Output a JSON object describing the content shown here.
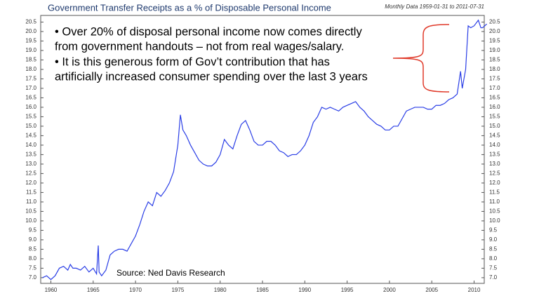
{
  "chart_data": {
    "type": "line",
    "title": "Government Transfer Receipts as a % of Disposable Personal Income",
    "subtitle": "Monthly Data 1959-01-31 to 2011-07-31",
    "annotations": [
      "• Over 20% of disposal personal income now comes directly",
      "from government handouts – not from real wages/salary.",
      "• It is this generous form of Gov’t contribution that has",
      "artificially increased consumer spending over the last 3 years"
    ],
    "source": "Source: Ned Davis Research",
    "color": "#2a3ee6",
    "x": [
      1959,
      1959.5,
      1960,
      1960.5,
      1961,
      1961.5,
      1962,
      1962.3,
      1962.6,
      1963,
      1963.5,
      1964,
      1964.5,
      1965,
      1965.4,
      1965.6,
      1965.7,
      1966,
      1966.5,
      1967,
      1967.5,
      1968,
      1968.5,
      1969,
      1969.5,
      1970,
      1970.5,
      1971,
      1971.5,
      1972,
      1972.5,
      1973,
      1973.5,
      1974,
      1974.5,
      1975,
      1975.3,
      1975.6,
      1976,
      1976.5,
      1977,
      1977.5,
      1978,
      1978.5,
      1979,
      1979.5,
      1980,
      1980.5,
      1981,
      1981.5,
      1982,
      1982.5,
      1983,
      1983.5,
      1984,
      1984.5,
      1985,
      1985.5,
      1986,
      1986.5,
      1987,
      1987.5,
      1988,
      1988.5,
      1989,
      1989.5,
      1990,
      1990.5,
      1991,
      1991.5,
      1992,
      1992.5,
      1993,
      1993.5,
      1994,
      1994.5,
      1995,
      1995.5,
      1996,
      1996.5,
      1997,
      1997.5,
      1998,
      1998.5,
      1999,
      1999.5,
      2000,
      2000.5,
      2001,
      2001.5,
      2002,
      2002.5,
      2003,
      2003.5,
      2004,
      2004.5,
      2005,
      2005.5,
      2006,
      2006.5,
      2007,
      2007.5,
      2008,
      2008.4,
      2008.6,
      2009,
      2009.3,
      2009.6,
      2010,
      2010.5,
      2010.8,
      2011,
      2011.5
    ],
    "values": [
      7.0,
      7.1,
      6.9,
      7.1,
      7.5,
      7.6,
      7.4,
      7.7,
      7.5,
      7.5,
      7.4,
      7.6,
      7.3,
      7.5,
      7.2,
      8.7,
      7.3,
      7.1,
      7.4,
      8.2,
      8.4,
      8.5,
      8.5,
      8.4,
      8.8,
      9.2,
      9.8,
      10.5,
      11.0,
      10.8,
      11.5,
      11.3,
      11.6,
      12.0,
      12.6,
      14.0,
      15.6,
      14.8,
      14.5,
      14.0,
      13.6,
      13.2,
      13.0,
      12.9,
      12.9,
      13.1,
      13.5,
      14.3,
      14.0,
      13.8,
      14.5,
      15.1,
      15.3,
      14.8,
      14.2,
      14.0,
      14.0,
      14.2,
      14.2,
      14.0,
      13.7,
      13.6,
      13.4,
      13.5,
      13.5,
      13.7,
      14.0,
      14.5,
      15.2,
      15.5,
      16.0,
      15.9,
      16.0,
      15.9,
      15.8,
      16.0,
      16.1,
      16.2,
      16.3,
      16.0,
      15.8,
      15.5,
      15.3,
      15.1,
      15.0,
      14.8,
      14.8,
      15.0,
      15.0,
      15.4,
      15.8,
      15.9,
      16.0,
      16.0,
      16.0,
      15.9,
      15.9,
      16.1,
      16.1,
      16.2,
      16.4,
      16.5,
      16.7,
      17.9,
      17.0,
      18.0,
      20.3,
      20.2,
      20.3,
      20.6,
      20.2,
      20.2,
      20.4
    ],
    "xlim": [
      1958.8,
      2011.2
    ],
    "xticks": [
      1960,
      1965,
      1970,
      1975,
      1980,
      1985,
      1990,
      1995,
      2000,
      2005,
      2010
    ],
    "ylim": [
      6.7,
      20.85
    ],
    "yticks": [
      {
        "value": 7,
        "label": "7.0"
      },
      7.5,
      {
        "value": 8,
        "label": "8.0"
      },
      8.5,
      {
        "value": 9,
        "label": "9.0"
      },
      9.5,
      {
        "value": 10,
        "label": "10.0"
      },
      10.5,
      {
        "value": 11,
        "label": "11.0"
      },
      11.5,
      {
        "value": 12,
        "label": "12.0"
      },
      12.5,
      {
        "value": 13,
        "label": "13.0"
      },
      13.5,
      {
        "value": 14,
        "label": "14.0"
      },
      14.5,
      {
        "value": 15,
        "label": "15.0"
      },
      15.5,
      {
        "value": 16,
        "label": "16.0"
      },
      16.5,
      {
        "value": 17,
        "label": "17.0"
      },
      17.5,
      {
        "value": 18,
        "label": "18.0"
      },
      18.5,
      {
        "value": 19,
        "label": "19.0"
      },
      19.5,
      {
        "value": 20,
        "label": "20.0"
      },
      20.5
    ],
    "y2lim": [
      6.7,
      20.85
    ],
    "y2ticks": [
      {
        "value": 7,
        "label": "7.0"
      },
      7.5,
      {
        "value": 8,
        "label": "8.0"
      },
      8.5,
      {
        "value": 9,
        "label": "9.0"
      },
      9.5,
      {
        "value": 10,
        "label": "10.0"
      },
      10.5,
      {
        "value": 11,
        "label": "11.0"
      },
      11.5,
      {
        "value": 12,
        "label": "12.0"
      },
      12.5,
      {
        "value": 13,
        "label": "13.0"
      },
      13.5,
      {
        "value": 14,
        "label": "14.0"
      },
      14.5,
      {
        "value": 15,
        "label": "15.0"
      },
      15.5,
      {
        "value": 16,
        "label": "16.0"
      },
      16.5,
      {
        "value": 17,
        "label": "17.0"
      },
      17.5,
      {
        "value": 18,
        "label": "18.0"
      },
      18.5,
      {
        "value": 19,
        "label": "19.0"
      },
      19.5,
      {
        "value": 20,
        "label": "20.0"
      },
      20.5
    ]
  }
}
